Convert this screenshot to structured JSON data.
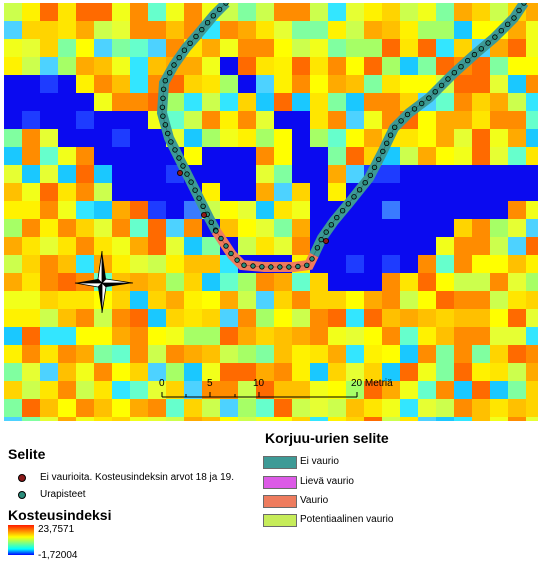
{
  "scale_bar": {
    "labels": [
      "0",
      "5",
      "10",
      "20 Metriä"
    ]
  },
  "legend": {
    "title": "Selite",
    "items": [
      {
        "label": "Ei vaurioita. Kosteusindeksin arvot 18 ja 19.",
        "dot_color": "#8b1a1a"
      },
      {
        "label": "Urapisteet",
        "dot_color": "#2a8c7a"
      }
    ]
  },
  "index_legend": {
    "title": "Kosteusindeksi",
    "max_label": "23,7571",
    "min_label": "-1,72004"
  },
  "route_legend": {
    "title": "Korjuu-urien selite",
    "items": [
      {
        "label": "Ei vaurio",
        "color": "#3d9a96"
      },
      {
        "label": "Lievä vaurio",
        "color": "#dc5ae6"
      },
      {
        "label": "Vaurio",
        "color": "#ee7c5e"
      },
      {
        "label": "Potentiaalinen vaurio",
        "color": "#c6ec5a"
      }
    ]
  },
  "compass": {
    "icon": "north-arrow-icon"
  }
}
